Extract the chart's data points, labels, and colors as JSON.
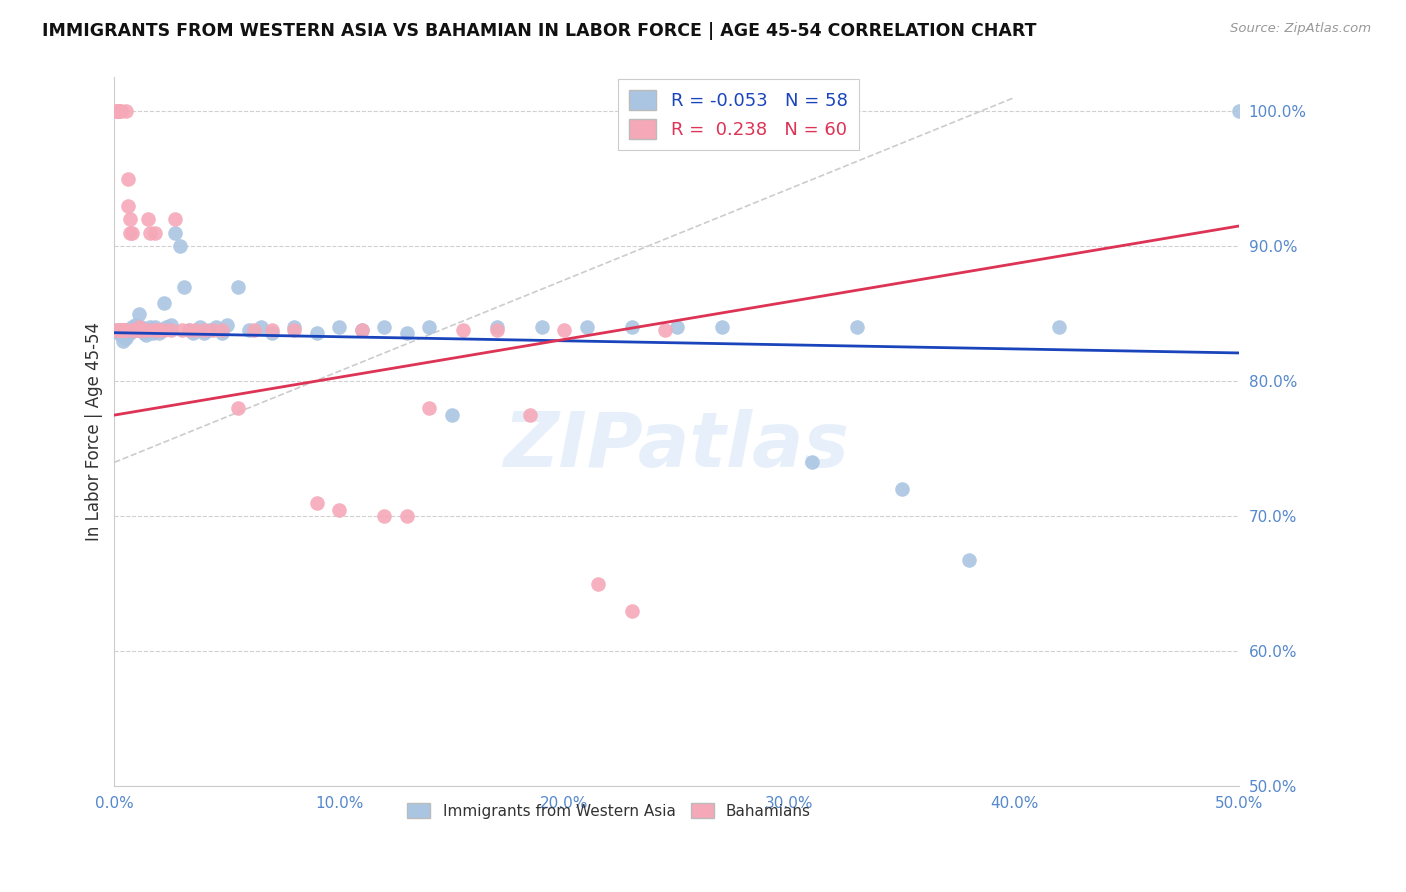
{
  "title": "IMMIGRANTS FROM WESTERN ASIA VS BAHAMIAN IN LABOR FORCE | AGE 45-54 CORRELATION CHART",
  "source": "Source: ZipAtlas.com",
  "ylabel": "In Labor Force | Age 45-54",
  "xlim": [
    0.0,
    0.5
  ],
  "ylim": [
    0.5,
    1.025
  ],
  "xtick_labels": [
    "0.0%",
    "10.0%",
    "20.0%",
    "30.0%",
    "40.0%",
    "50.0%"
  ],
  "xtick_vals": [
    0.0,
    0.1,
    0.2,
    0.3,
    0.4,
    0.5
  ],
  "ytick_labels_right": [
    "50.0%",
    "60.0%",
    "70.0%",
    "80.0%",
    "90.0%",
    "100.0%"
  ],
  "ytick_vals_right": [
    0.5,
    0.6,
    0.7,
    0.8,
    0.9,
    1.0
  ],
  "blue_R": -0.053,
  "blue_N": 58,
  "pink_R": 0.238,
  "pink_N": 60,
  "blue_color": "#aac5e2",
  "pink_color": "#f5a8b8",
  "blue_line_color": "#1a44bb",
  "pink_line_color": "#dd3355",
  "axis_label_color": "#5588cc",
  "watermark": "ZIPatlas",
  "blue_scatter_x": [
    0.001,
    0.002,
    0.003,
    0.004,
    0.005,
    0.006,
    0.007,
    0.008,
    0.009,
    0.01,
    0.011,
    0.012,
    0.013,
    0.014,
    0.015,
    0.016,
    0.017,
    0.018,
    0.02,
    0.021,
    0.022,
    0.023,
    0.025,
    0.027,
    0.029,
    0.031,
    0.033,
    0.035,
    0.038,
    0.04,
    0.042,
    0.045,
    0.048,
    0.05,
    0.055,
    0.06,
    0.065,
    0.07,
    0.08,
    0.09,
    0.1,
    0.11,
    0.12,
    0.13,
    0.14,
    0.15,
    0.17,
    0.19,
    0.21,
    0.23,
    0.25,
    0.27,
    0.31,
    0.33,
    0.35,
    0.38,
    0.42,
    0.5
  ],
  "blue_scatter_y": [
    0.838,
    0.836,
    0.834,
    0.83,
    0.832,
    0.838,
    0.836,
    0.84,
    0.842,
    0.838,
    0.85,
    0.84,
    0.836,
    0.834,
    0.838,
    0.84,
    0.836,
    0.84,
    0.836,
    0.838,
    0.858,
    0.84,
    0.842,
    0.91,
    0.9,
    0.87,
    0.838,
    0.836,
    0.84,
    0.836,
    0.838,
    0.84,
    0.836,
    0.842,
    0.87,
    0.838,
    0.84,
    0.836,
    0.84,
    0.836,
    0.84,
    0.838,
    0.84,
    0.836,
    0.84,
    0.775,
    0.84,
    0.84,
    0.84,
    0.84,
    0.84,
    0.84,
    0.74,
    0.84,
    0.72,
    0.668,
    0.84,
    1.0
  ],
  "pink_scatter_x": [
    0.0005,
    0.001,
    0.001,
    0.001,
    0.002,
    0.002,
    0.002,
    0.003,
    0.003,
    0.003,
    0.004,
    0.004,
    0.005,
    0.005,
    0.005,
    0.006,
    0.006,
    0.007,
    0.007,
    0.008,
    0.008,
    0.009,
    0.01,
    0.01,
    0.011,
    0.012,
    0.013,
    0.014,
    0.015,
    0.016,
    0.017,
    0.018,
    0.019,
    0.02,
    0.022,
    0.025,
    0.027,
    0.03,
    0.033,
    0.036,
    0.04,
    0.044,
    0.048,
    0.055,
    0.062,
    0.07,
    0.08,
    0.09,
    0.1,
    0.11,
    0.12,
    0.13,
    0.14,
    0.155,
    0.17,
    0.185,
    0.2,
    0.215,
    0.23,
    0.245
  ],
  "pink_scatter_y": [
    0.838,
    1.0,
    1.0,
    1.0,
    1.0,
    1.0,
    0.838,
    1.0,
    0.838,
    0.838,
    0.838,
    0.838,
    1.0,
    0.838,
    0.838,
    0.95,
    0.93,
    0.92,
    0.91,
    0.838,
    0.91,
    0.838,
    0.838,
    0.838,
    0.84,
    0.838,
    0.838,
    0.838,
    0.92,
    0.91,
    0.838,
    0.91,
    0.838,
    0.838,
    0.838,
    0.838,
    0.92,
    0.838,
    0.838,
    0.838,
    0.838,
    0.838,
    0.838,
    0.78,
    0.838,
    0.838,
    0.838,
    0.71,
    0.705,
    0.838,
    0.7,
    0.7,
    0.78,
    0.838,
    0.838,
    0.775,
    0.838,
    0.65,
    0.63,
    0.838
  ]
}
